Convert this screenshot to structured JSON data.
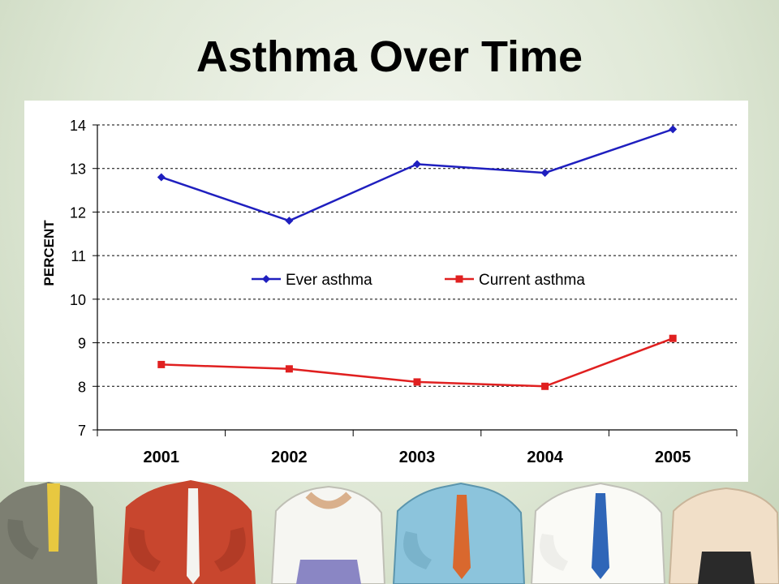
{
  "slide": {
    "title": "Asthma Over Time"
  },
  "colors": {
    "ever_asthma": "#1f1fbf",
    "current_asthma": "#e02020",
    "background": "#dfe8d6"
  },
  "chart_data": {
    "type": "line",
    "title": "",
    "xlabel": "",
    "ylabel": "PERCENT",
    "categories": [
      "2001",
      "2002",
      "2003",
      "2004",
      "2005"
    ],
    "y_ticks": [
      "7",
      "8",
      "9",
      "10",
      "11",
      "12",
      "13",
      "14"
    ],
    "ylim": [
      7,
      14
    ],
    "grid": "horizontal dashed",
    "legend_position": "center",
    "series": [
      {
        "name": "Ever asthma",
        "marker": "diamond",
        "color": "#1f1fbf",
        "values": [
          12.8,
          11.8,
          13.1,
          12.9,
          13.9
        ]
      },
      {
        "name": "Current asthma",
        "marker": "square",
        "color": "#e02020",
        "values": [
          8.5,
          8.4,
          8.1,
          8.0,
          9.1
        ]
      }
    ]
  }
}
